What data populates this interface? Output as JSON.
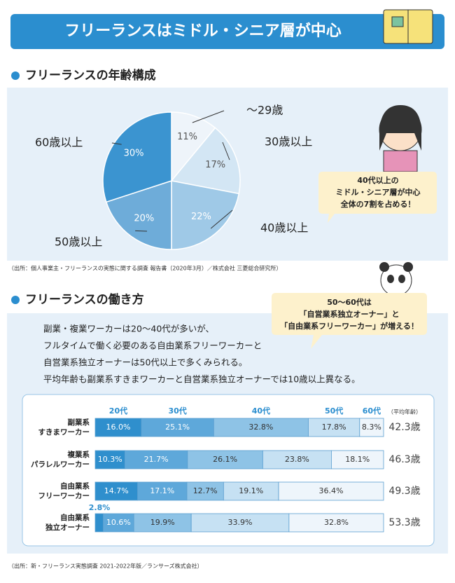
{
  "header": {
    "title": "フリーランスはミドル・シニア層が中心"
  },
  "chart_data": [
    {
      "type": "pie",
      "title": "フリーランスの年齢構成",
      "categories": [
        "～29歳",
        "30歳以上",
        "40歳以上",
        "50歳以上",
        "60歳以上"
      ],
      "values": [
        11,
        17,
        22,
        20,
        30
      ],
      "value_labels": [
        "11%",
        "17%",
        "22%",
        "20%",
        "30%"
      ],
      "colors": [
        "#eef4fa",
        "#d3e6f4",
        "#9fc9e7",
        "#6eacd9",
        "#3b94d0"
      ],
      "callout": [
        "40代以上の",
        "ミドル・シニア層が中心",
        "全体の7割を占める！"
      ],
      "source": "（出所：個人事業主・フリーランスの実態に関する調査 報告書（2020年3月）／株式会社 三菱総合研究所）"
    },
    {
      "type": "stacked_bar",
      "title": "フリーランスの働き方",
      "callout": [
        "50～60代は",
        "「自営業系独立オーナー」と",
        "「自由業系フリーワーカー」が増える！"
      ],
      "description": [
        "副業・複業ワーカーは20～40代が多いが、",
        "フルタイムで働く必要のある自由業系フリーワーカーと",
        "自営業系独立オーナーは50代以上で多くみられる。",
        "平均年齢も副業系すきまワーカーと自営業系独立オーナーでは10歳以上異なる。"
      ],
      "categories": [
        [
          "副業系",
          "すきまワーカー"
        ],
        [
          "複業系",
          "パラレルワーカー"
        ],
        [
          "自由業系",
          "フリーワーカー"
        ],
        [
          "自由業系",
          "独立オーナー"
        ]
      ],
      "xlim": [
        0,
        100
      ],
      "series": [
        {
          "name": "20代",
          "color": "#2f8fcd",
          "values": [
            16.0,
            10.3,
            14.7,
            2.8
          ],
          "value_labels": [
            "16.0%",
            "10.3%",
            "14.7%",
            "2.8%"
          ]
        },
        {
          "name": "30代",
          "color": "#5ea8da",
          "values": [
            25.1,
            21.7,
            17.1,
            10.6
          ],
          "value_labels": [
            "25.1%",
            "21.7%",
            "17.1%",
            "10.6%"
          ]
        },
        {
          "name": "40代",
          "color": "#8ec3e6",
          "values": [
            32.8,
            26.1,
            12.7,
            19.9
          ],
          "value_labels": [
            "32.8%",
            "26.1%",
            "12.7%",
            "19.9%"
          ]
        },
        {
          "name": "50代",
          "color": "#c6e1f3",
          "values": [
            17.8,
            23.8,
            19.1,
            33.9
          ],
          "value_labels": [
            "17.8%",
            "23.8%",
            "19.1%",
            "33.9%"
          ]
        },
        {
          "name": "60代",
          "color": "#eef5fb",
          "values": [
            8.3,
            18.1,
            36.4,
            32.8
          ],
          "value_labels": [
            "8.3%",
            "18.1%",
            "36.4%",
            "32.8%"
          ]
        }
      ],
      "average_title": "（平均年齢）",
      "averages": [
        42.3,
        46.3,
        49.3,
        53.3
      ],
      "average_labels": [
        "42.3歳",
        "46.3歳",
        "49.3歳",
        "53.3歳"
      ],
      "source": "（出所：新・フリーランス実態調査 2021-2022年版／ランサーズ株式会社）"
    }
  ]
}
